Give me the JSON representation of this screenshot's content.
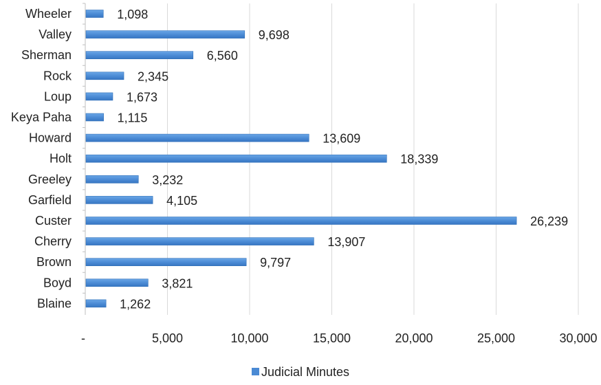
{
  "chart_data": {
    "type": "bar",
    "orientation": "horizontal",
    "categories": [
      "Wheeler",
      "Valley",
      "Sherman",
      "Rock",
      "Loup",
      "Keya Paha",
      "Howard",
      "Holt",
      "Greeley",
      "Garfield",
      "Custer",
      "Cherry",
      "Brown",
      "Boyd",
      "Blaine"
    ],
    "series": [
      {
        "name": "Judicial Minutes",
        "values": [
          1098,
          9698,
          6560,
          2345,
          1673,
          1115,
          13609,
          18339,
          3232,
          4105,
          26239,
          13907,
          9797,
          3821,
          1262
        ],
        "labels": [
          "1,098",
          "9,698",
          "6,560",
          "2,345",
          "1,673",
          "1,115",
          "13,609",
          "18,339",
          "3,232",
          "4,105",
          "26,239",
          "13,907",
          "9,797",
          "3,821",
          "1,262"
        ]
      }
    ],
    "xlim": [
      0,
      30000
    ],
    "x_ticks": [
      0,
      5000,
      10000,
      15000,
      20000,
      25000,
      30000
    ],
    "x_tick_labels": [
      "-",
      "5,000",
      "10,000",
      "15,000",
      "20,000",
      "25,000",
      "30,000"
    ],
    "grid": "vertical",
    "legend": "bottom-center",
    "title": "",
    "xlabel": "",
    "ylabel": "",
    "colors": {
      "bar": "#4a8ad4",
      "bar_edge": "#2f6fb8",
      "grid": "#d9d9d9",
      "text": "#222222"
    }
  },
  "legend": {
    "label": "Judicial Minutes"
  }
}
